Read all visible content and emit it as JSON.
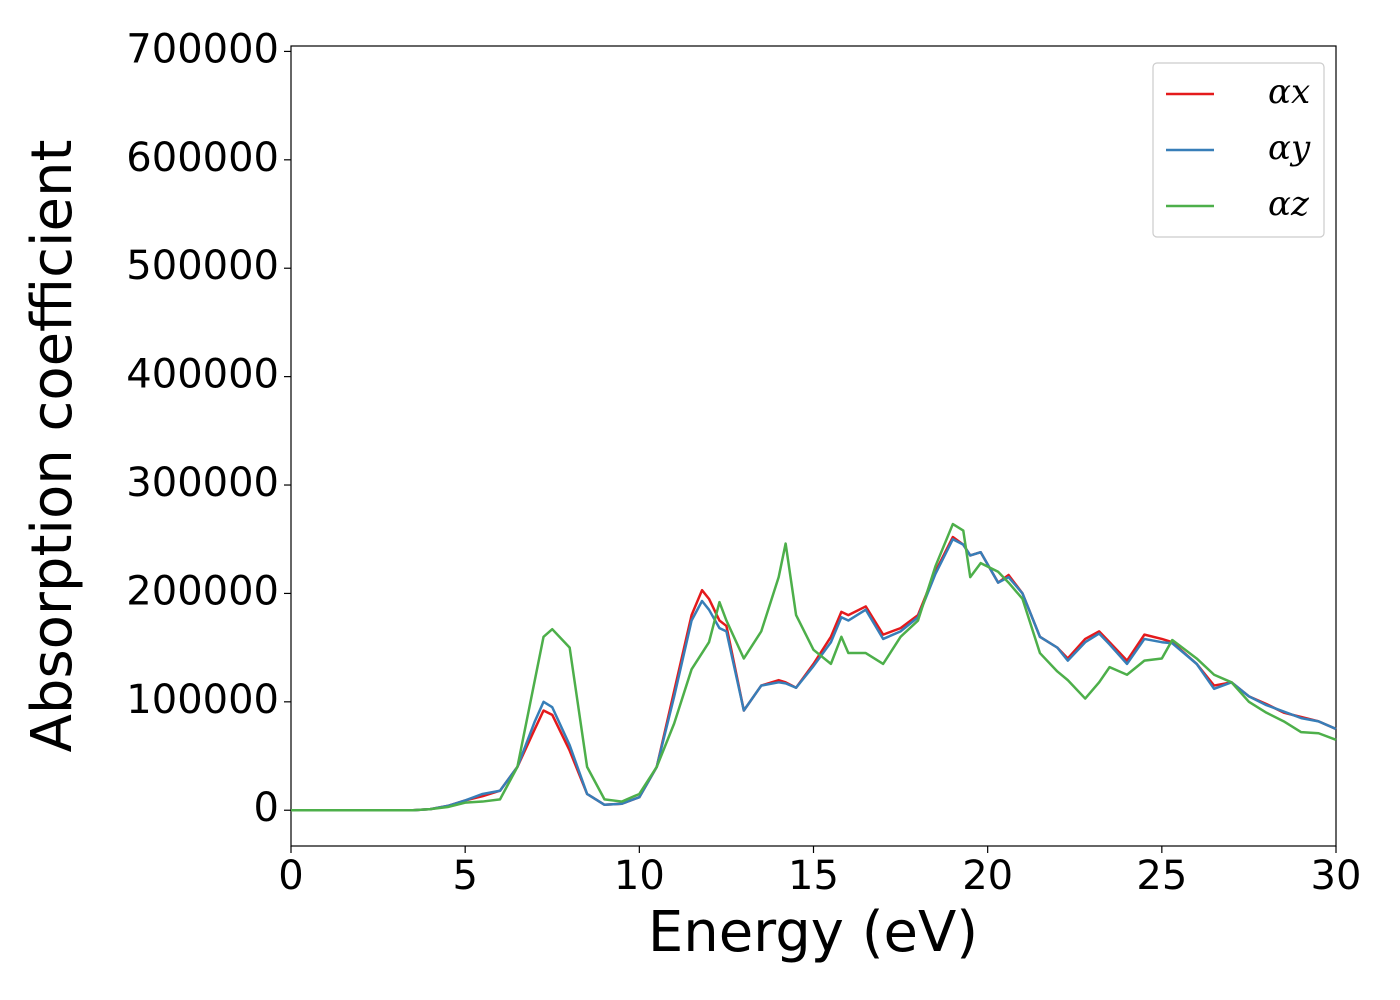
{
  "chart_data": {
    "type": "line",
    "xlabel": "Energy (eV)",
    "ylabel": "Absorption coefficient",
    "x": [
      0,
      0.5,
      1,
      1.5,
      2,
      2.5,
      3,
      3.5,
      4,
      4.5,
      5,
      5.5,
      6,
      6.5,
      7,
      7.25,
      7.5,
      8,
      8.5,
      9,
      9.5,
      10,
      10.5,
      11,
      11.5,
      11.8,
      12,
      12.3,
      12.5,
      13,
      13.5,
      14,
      14.2,
      14.5,
      15,
      15.5,
      15.8,
      16,
      16.5,
      17,
      17.5,
      18,
      18.5,
      19,
      19.3,
      19.5,
      19.8,
      20.3,
      20.6,
      21,
      21.5,
      22,
      22.3,
      22.8,
      23.2,
      23.5,
      24,
      24.5,
      25,
      25.3,
      26,
      26.5,
      27,
      27.5,
      28,
      28.5,
      29,
      29.5,
      30
    ],
    "series": [
      {
        "name": "αx",
        "color": "#e41a1c",
        "values": [
          0,
          0,
          0,
          0,
          0,
          0,
          0,
          0,
          1000,
          4000,
          9000,
          13000,
          18000,
          40000,
          75000,
          92000,
          88000,
          55000,
          15000,
          5000,
          6000,
          12000,
          40000,
          110000,
          180000,
          203000,
          195000,
          175000,
          170000,
          92000,
          115000,
          120000,
          118000,
          113000,
          135000,
          160000,
          183000,
          180000,
          188000,
          162000,
          168000,
          180000,
          220000,
          252000,
          245000,
          235000,
          238000,
          210000,
          217000,
          200000,
          160000,
          150000,
          140000,
          158000,
          165000,
          155000,
          138000,
          162000,
          158000,
          155000,
          135000,
          115000,
          118000,
          105000,
          98000,
          90000,
          86000,
          82000,
          75000
        ]
      },
      {
        "name": "αy",
        "color": "#377eb8",
        "values": [
          0,
          0,
          0,
          0,
          0,
          0,
          0,
          0,
          1000,
          4000,
          9000,
          15000,
          18000,
          40000,
          82000,
          100000,
          95000,
          60000,
          15000,
          5000,
          6000,
          12000,
          40000,
          105000,
          175000,
          193000,
          185000,
          168000,
          165000,
          92000,
          115000,
          118000,
          117000,
          113000,
          133000,
          155000,
          178000,
          175000,
          185000,
          158000,
          165000,
          178000,
          218000,
          250000,
          245000,
          235000,
          238000,
          210000,
          215000,
          200000,
          160000,
          150000,
          138000,
          155000,
          163000,
          153000,
          135000,
          158000,
          155000,
          154000,
          135000,
          112000,
          118000,
          105000,
          97000,
          91000,
          85000,
          82000,
          75000
        ]
      },
      {
        "name": "αz",
        "color": "#4daf4a",
        "values": [
          0,
          0,
          0,
          0,
          0,
          0,
          0,
          0,
          1000,
          3000,
          7000,
          8000,
          10000,
          40000,
          120000,
          160000,
          167000,
          150000,
          40000,
          10000,
          8000,
          15000,
          40000,
          80000,
          130000,
          145000,
          155000,
          192000,
          175000,
          140000,
          165000,
          215000,
          246000,
          180000,
          148000,
          135000,
          160000,
          145000,
          145000,
          135000,
          160000,
          175000,
          225000,
          264000,
          258000,
          215000,
          228000,
          220000,
          210000,
          195000,
          145000,
          128000,
          120000,
          103000,
          118000,
          132000,
          125000,
          138000,
          140000,
          157000,
          140000,
          125000,
          118000,
          100000,
          90000,
          82000,
          72000,
          71000,
          65000
        ]
      }
    ],
    "xlim": [
      0,
      30
    ],
    "xticks": [
      0,
      5,
      10,
      15,
      20,
      25,
      30
    ],
    "ylim": [
      -33000,
      705000
    ],
    "yticks": [
      0,
      100000,
      200000,
      300000,
      400000,
      500000,
      600000,
      700000
    ],
    "legend": "upper right"
  }
}
